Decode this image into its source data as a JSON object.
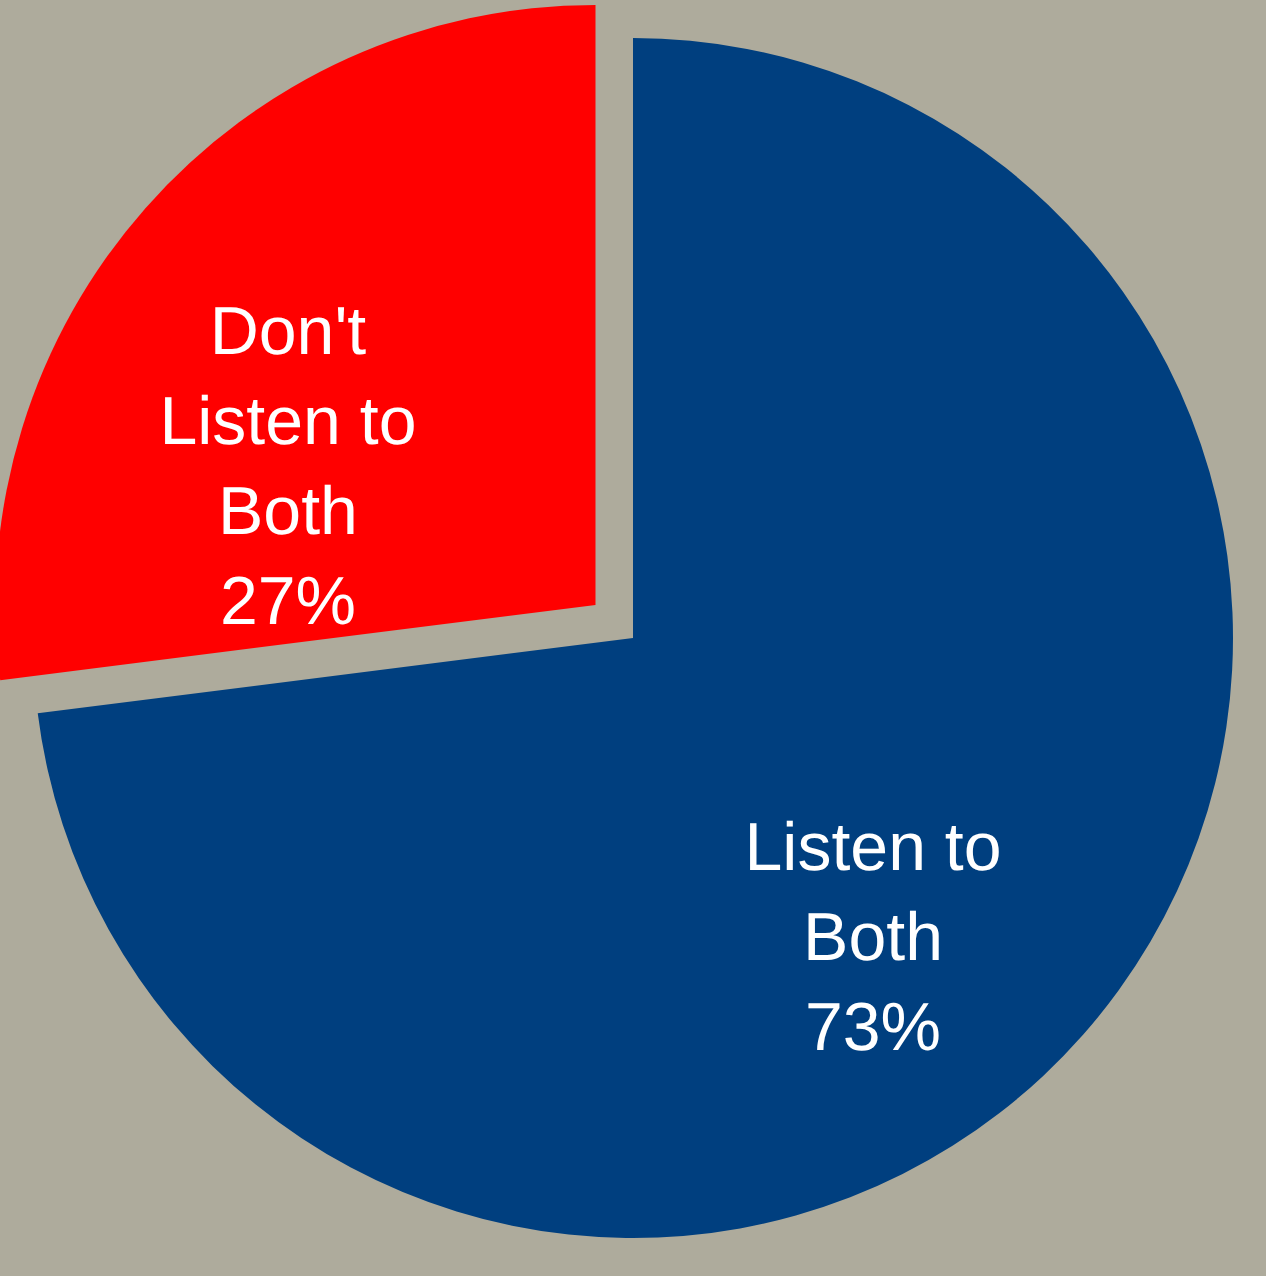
{
  "chart_data": {
    "type": "pie",
    "categories": [
      "Listen to Both",
      "Don't Listen to Both"
    ],
    "values": [
      73,
      27
    ],
    "colors": [
      "#003f7f",
      "#ff0000"
    ],
    "value_labels": [
      "73%",
      "27%"
    ]
  }
}
